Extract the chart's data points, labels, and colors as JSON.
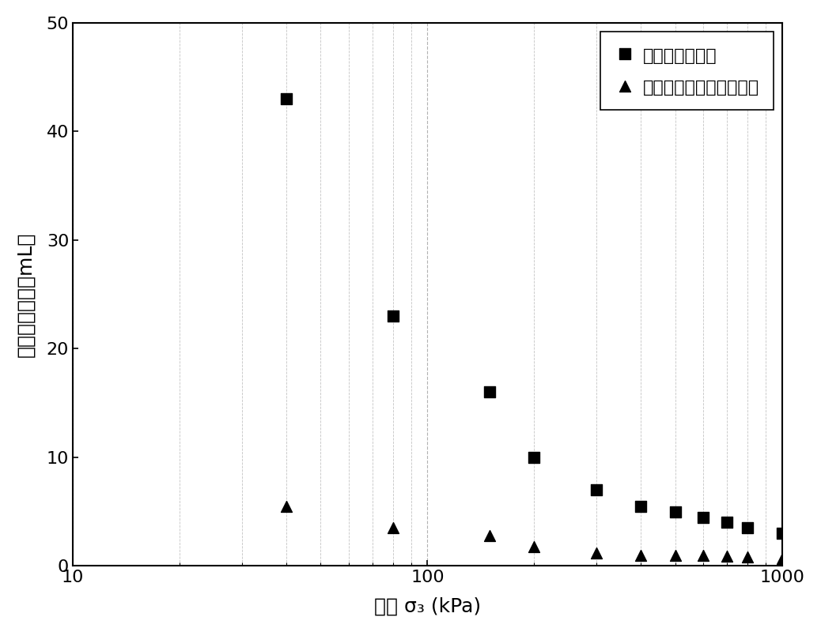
{
  "square_x": [
    40,
    80,
    150,
    200,
    300,
    400,
    500,
    600,
    700,
    800,
    1000
  ],
  "square_y": [
    43,
    23,
    16,
    10,
    7.0,
    5.5,
    5.0,
    4.5,
    4.0,
    3.5,
    3.0
  ],
  "triangle_x": [
    40,
    80,
    150,
    200,
    300,
    400,
    500,
    600,
    700,
    800,
    1000
  ],
  "triangle_y": [
    5.5,
    3.5,
    2.8,
    1.8,
    1.2,
    1.0,
    1.0,
    1.0,
    0.9,
    0.8,
    0.7
  ],
  "xlabel": "围压 σ₃ (kPa)",
  "ylabel": "体积变形幅値（mL）",
  "legend1": "橡皮膜嵌入增量",
  "legend2": "粗粒土骨架体积变形幅値",
  "xlim": [
    10,
    1000
  ],
  "ylim": [
    0,
    50
  ],
  "yticks": [
    0,
    10,
    20,
    30,
    40,
    50
  ],
  "marker_color": "#000000",
  "background_color": "#ffffff",
  "grid_color": "#aaaaaa"
}
